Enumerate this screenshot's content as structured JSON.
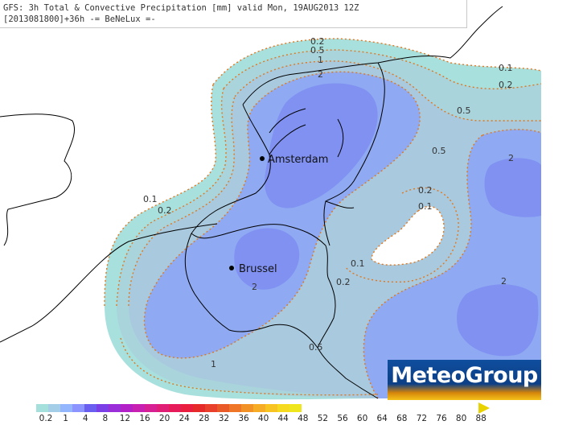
{
  "header": {
    "line1": "GFS: 3h Total & Convective Precipitation [mm] valid Mon, 19AUG2013 12Z",
    "line2": "[2013081800]+36h -= BeNeLux =-"
  },
  "cities": [
    {
      "name": "Amsterdam"
    },
    {
      "name": "Brussel"
    }
  ],
  "contour_labels": [
    "0.2",
    "0.5",
    "1",
    "2",
    "0.1",
    "0.2",
    "0.5",
    "0.5",
    "0.2",
    "0.1",
    "2",
    "0.1",
    "0.2",
    "0.1",
    "0.2",
    "2",
    "2",
    "0.5",
    "1"
  ],
  "logo": {
    "text": "MeteoGroup"
  },
  "legend": {
    "tick_labels": [
      "0.2",
      "1",
      "4",
      "8",
      "12",
      "16",
      "20",
      "24",
      "28",
      "32",
      "36",
      "40",
      "44",
      "48",
      "52",
      "56",
      "60",
      "64",
      "68",
      "72",
      "76",
      "80",
      "88"
    ],
    "colors": [
      "#a6e0dc",
      "#a4cde8",
      "#94b6ff",
      "#8c94ff",
      "#6a5ef0",
      "#7a3fe6",
      "#9a2ed8",
      "#b320c8",
      "#c820b0",
      "#d62094",
      "#e01e76",
      "#e61c5a",
      "#ea1e3e",
      "#e62a2a",
      "#e8402a",
      "#ea5a28",
      "#ee7626",
      "#f29226",
      "#f6ac24",
      "#f8c422",
      "#f6da20",
      "#f0e61e"
    ]
  },
  "colors": {
    "p01": "#a8e0de",
    "p02": "#a9d4dc",
    "p05": "#a9c9de",
    "p1": "#8faaf2",
    "p2": "#8091f2",
    "contour": "#e07820"
  }
}
